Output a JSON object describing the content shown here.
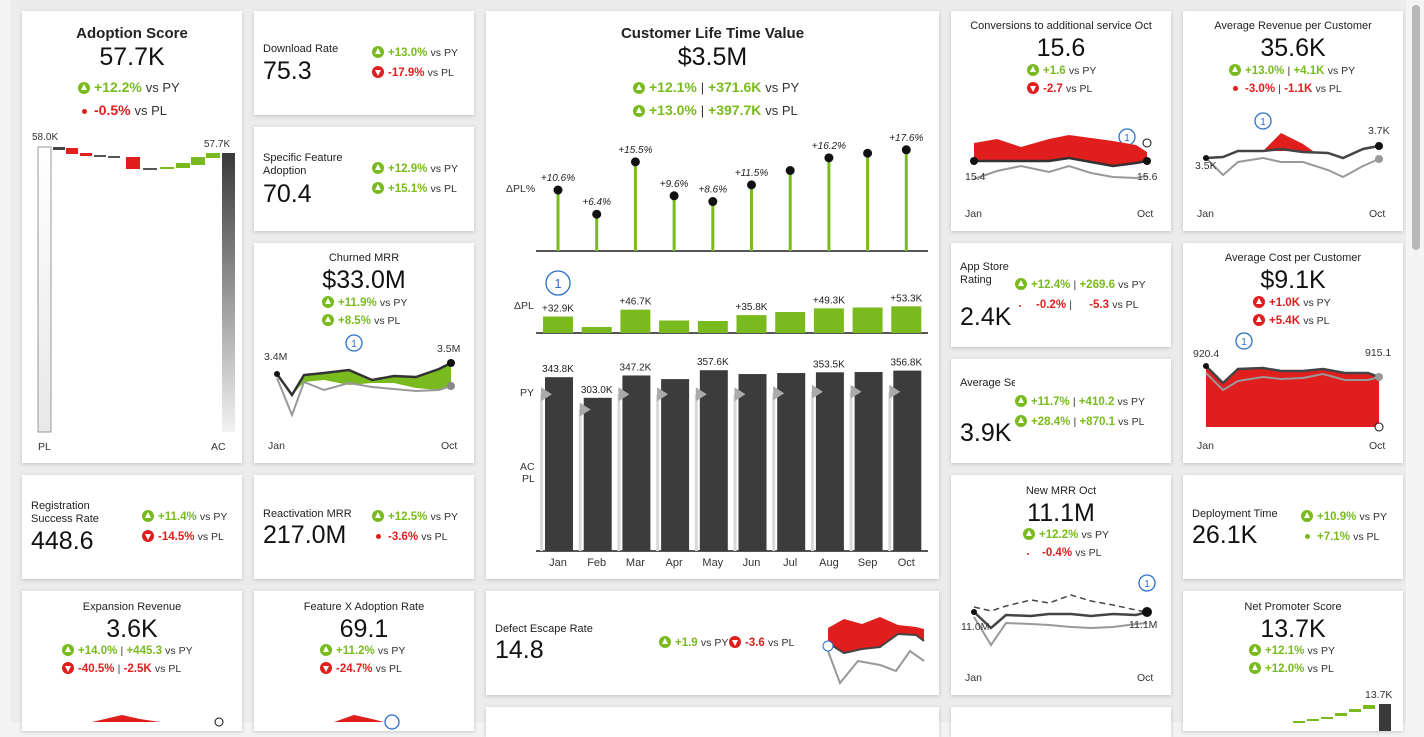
{
  "adoption": {
    "title": "Adoption Score",
    "value": "57.7K",
    "py": "+12.2%",
    "py_lbl": "vs PY",
    "pl": "-0.5%",
    "pl_lbl": "vs PL",
    "start_lbl": "58.0K",
    "end_lbl": "57.7K",
    "x_start": "PL",
    "x_end": "AC"
  },
  "download": {
    "title": "Download Rate",
    "value": "75.3",
    "py": "+13.0%",
    "pl": "-17.9%",
    "py_lbl": "vs PY",
    "pl_lbl": "vs PL"
  },
  "specific": {
    "title": "Specific Feature Adoption",
    "value": "70.4",
    "py": "+12.9%",
    "pl": "+15.1%",
    "py_lbl": "vs PY",
    "pl_lbl": "vs PL"
  },
  "churned": {
    "title": "Churned MRR",
    "value": "$33.0M",
    "py": "+11.9%",
    "pl": "+8.5%",
    "py_lbl": "vs PY",
    "pl_lbl": "vs PL",
    "start": "3.4M",
    "end": "3.5M",
    "x0": "Jan",
    "x1": "Oct",
    "marker": "1"
  },
  "registration": {
    "title": "Registration Success Rate",
    "value": "448.6",
    "py": "+11.4%",
    "pl": "-14.5%",
    "py_lbl": "vs PY",
    "pl_lbl": "vs PL"
  },
  "reactivation": {
    "title": "Reactivation MRR",
    "value": "217.0M",
    "py": "+12.5%",
    "pl": "-3.6%",
    "py_lbl": "vs PY",
    "pl_lbl": "vs PL"
  },
  "expansion": {
    "title": "Expansion Revenue",
    "value": "3.6K",
    "py": "+14.0%",
    "py_abs": "+445.3",
    "pl": "-40.5%",
    "pl_abs": "-2.5K",
    "py_lbl": "vs PY",
    "pl_lbl": "vs PL"
  },
  "featurex": {
    "title": "Feature X Adoption Rate",
    "value": "69.1",
    "py": "+11.2%",
    "pl": "-24.7%",
    "py_lbl": "vs PY",
    "pl_lbl": "vs PL"
  },
  "cltv": {
    "title": "Customer Life Time Value",
    "value": "$3.5M",
    "py": "+12.1%",
    "py_abs": "+371.6K",
    "pl": "+13.0%",
    "pl_abs": "+397.7K",
    "py_lbl": "vs PY",
    "pl_lbl": "vs PL",
    "sep": "|",
    "row_dpl_pct": "ΔPL%",
    "row_dpl": "ΔPL",
    "row_py": "PY",
    "row_ac": "AC",
    "row_pl": "PL",
    "marker": "1"
  },
  "defect": {
    "title": "Defect Escape Rate",
    "value": "14.8",
    "py": "+1.9",
    "pl": "-3.6",
    "py_lbl": "vs PY",
    "pl_lbl": "vs PL"
  },
  "conversions": {
    "title": "Conversions to additional service  Oct",
    "value": "15.6",
    "py": "+1.6",
    "pl": "-2.7",
    "py_lbl": "vs PY",
    "pl_lbl": "vs PL",
    "start": "15.4",
    "end": "15.6",
    "x0": "Jan",
    "x1": "Oct",
    "marker": "1"
  },
  "arpc": {
    "title": "Average Revenue per Customer",
    "value": "35.6K",
    "py": "+13.0%",
    "py_abs": "+4.1K",
    "pl": "-3.0%",
    "pl_abs": "-1.1K",
    "py_lbl": "vs PY",
    "pl_lbl": "vs PL",
    "start": "3.5K",
    "end": "3.7K",
    "x0": "Jan",
    "x1": "Oct",
    "marker": "1"
  },
  "appstore": {
    "title": "App Store Rating",
    "value": "2.4K",
    "py": "+12.4%",
    "py_abs": "+269.6",
    "pl": "-0.2%",
    "pl_abs": "-5.3",
    "py_lbl": "vs PY",
    "pl_lbl": "vs PL"
  },
  "acpc": {
    "title": "Average Cost per Customer",
    "value": "$9.1K",
    "py": "+1.0K",
    "pl": "+5.4K",
    "py_lbl": "vs PY",
    "pl_lbl": "vs PL",
    "start": "920.4",
    "end": "915.1",
    "x0": "Jan",
    "x1": "Oct",
    "marker": "1"
  },
  "session": {
    "title": "Average Session Frequenc",
    "value": "3.9K",
    "py": "+11.7%",
    "py_abs": "+410.2",
    "pl": "+28.4%",
    "pl_abs": "+870.1",
    "py_lbl": "vs PY",
    "pl_lbl": "vs PL"
  },
  "newmrr": {
    "title": "New MRR  Oct",
    "value": "11.1M",
    "py": "+12.2%",
    "pl": "-0.4%",
    "py_lbl": "vs PY",
    "pl_lbl": "vs PL",
    "start": "11.0M",
    "end": "11.1M",
    "x0": "Jan",
    "x1": "Oct",
    "marker": "1"
  },
  "deploy": {
    "title": "Deployment Time",
    "value": "26.1K",
    "py": "+10.9%",
    "pl": "+7.1%",
    "py_lbl": "vs PY",
    "pl_lbl": "vs PL"
  },
  "nps": {
    "title": "Net Promoter Score",
    "value": "13.7K",
    "py": "+12.1%",
    "pl": "+12.0%",
    "py_lbl": "vs PY",
    "pl_lbl": "vs PL",
    "end": "13.7K"
  },
  "chart_data": {
    "type": "bar",
    "categories": [
      "Jan",
      "Feb",
      "Mar",
      "Apr",
      "May",
      "Jun",
      "Jul",
      "Aug",
      "Sep",
      "Oct"
    ],
    "series": [
      {
        "name": "AC",
        "values": [
          343.8,
          303.0,
          347.2,
          340,
          357.6,
          350,
          352,
          353.5,
          354,
          356.8
        ]
      },
      {
        "name": "PY",
        "values": [
          310,
          280,
          310,
          310,
          310,
          310,
          312,
          315,
          315,
          315
        ]
      }
    ],
    "dpl": [
      32.9,
      12,
      46.7,
      25,
      24,
      35.8,
      42,
      49.3,
      51,
      53.3
    ],
    "dpl_labels": [
      "+32.9K",
      "",
      "+46.7K",
      "",
      "",
      "+35.8K",
      "",
      "+49.3K",
      "",
      "+53.3K"
    ],
    "dpl_pct": [
      10.6,
      6.4,
      15.5,
      9.6,
      8.6,
      11.5,
      14,
      16.2,
      17,
      17.6
    ],
    "dpl_pct_labels": [
      "+10.6%",
      "+6.4%",
      "+15.5%",
      "+9.6%",
      "+8.6%",
      "+11.5%",
      "",
      "+16.2%",
      "",
      "+17.6%"
    ],
    "ac_labels": [
      "343.8K",
      "303.0K",
      "347.2K",
      "",
      "357.6K",
      "",
      "",
      "353.5K",
      "",
      "356.8K"
    ]
  }
}
